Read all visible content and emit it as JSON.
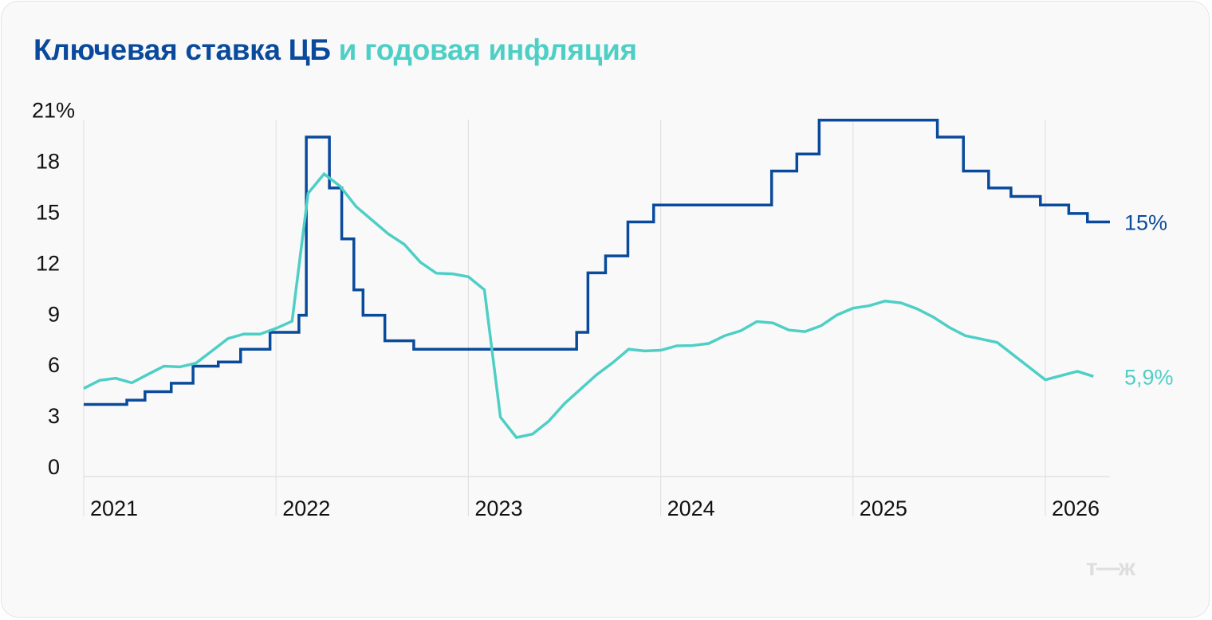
{
  "title": {
    "part1": "Ключевая ставка ЦБ",
    "part2": "и годовая инфляция"
  },
  "logo": "т—ж",
  "colors": {
    "key_rate": "#0a4a9c",
    "inflation": "#4ecfc6",
    "grid": "#e2e2e2",
    "text": "#111111"
  },
  "chart_data": {
    "type": "line",
    "title": "Ключевая ставка ЦБ и годовая инфляция",
    "ylim": [
      0,
      21
    ],
    "yticks": [
      0,
      3,
      6,
      9,
      12,
      15,
      18,
      21
    ],
    "ytick_labels": [
      "0",
      "3",
      "6",
      "9",
      "12",
      "15",
      "18",
      "21%"
    ],
    "xticks": [
      "2021",
      "2022",
      "2023",
      "2024",
      "2025",
      "2026"
    ],
    "grid": "vertical lines at year starts",
    "series": [
      {
        "key": "key_rate",
        "style": "step",
        "end_label": "15%",
        "points": [
          [
            "2021-01-01",
            4.25
          ],
          [
            "2021-03-22",
            4.5
          ],
          [
            "2021-04-26",
            5.0
          ],
          [
            "2021-06-15",
            5.5
          ],
          [
            "2021-07-26",
            6.5
          ],
          [
            "2021-09-13",
            6.75
          ],
          [
            "2021-10-25",
            7.5
          ],
          [
            "2021-12-20",
            8.5
          ],
          [
            "2022-02-14",
            9.5
          ],
          [
            "2022-02-28",
            20
          ],
          [
            "2022-04-11",
            17
          ],
          [
            "2022-05-04",
            14
          ],
          [
            "2022-05-27",
            11
          ],
          [
            "2022-06-14",
            9.5
          ],
          [
            "2022-07-25",
            8
          ],
          [
            "2022-09-19",
            7.5
          ],
          [
            "2023-07-24",
            8.5
          ],
          [
            "2023-08-15",
            12
          ],
          [
            "2023-09-18",
            13
          ],
          [
            "2023-10-30",
            15
          ],
          [
            "2023-12-18",
            16
          ],
          [
            "2024-07-29",
            18
          ],
          [
            "2024-09-16",
            19
          ],
          [
            "2024-10-28",
            21
          ],
          [
            "2025-06-09",
            20
          ],
          [
            "2025-07-28",
            18
          ],
          [
            "2025-09-15",
            17
          ],
          [
            "2025-10-27",
            16.5
          ],
          [
            "2025-12-22",
            16
          ],
          [
            "2026-02-15",
            15.5
          ],
          [
            "2026-03-20",
            15
          ],
          [
            "2026-04-15",
            15
          ]
        ]
      },
      {
        "key": "inflation",
        "style": "line",
        "end_label": "5,9%",
        "points": [
          [
            "2021-01",
            5.19
          ],
          [
            "2021-02",
            5.67
          ],
          [
            "2021-03",
            5.79
          ],
          [
            "2021-04",
            5.52
          ],
          [
            "2021-05",
            6.02
          ],
          [
            "2021-06",
            6.5
          ],
          [
            "2021-07",
            6.46
          ],
          [
            "2021-08",
            6.68
          ],
          [
            "2021-09",
            7.4
          ],
          [
            "2021-10",
            8.13
          ],
          [
            "2021-11",
            8.4
          ],
          [
            "2021-12",
            8.39
          ],
          [
            "2022-01",
            8.73
          ],
          [
            "2022-02",
            9.15
          ],
          [
            "2022-03",
            16.69
          ],
          [
            "2022-04",
            17.83
          ],
          [
            "2022-05",
            17.1
          ],
          [
            "2022-06",
            15.9
          ],
          [
            "2022-07",
            15.1
          ],
          [
            "2022-08",
            14.3
          ],
          [
            "2022-09",
            13.68
          ],
          [
            "2022-10",
            12.63
          ],
          [
            "2022-11",
            11.98
          ],
          [
            "2022-12",
            11.94
          ],
          [
            "2023-01",
            11.77
          ],
          [
            "2023-02",
            11.0
          ],
          [
            "2023-03",
            3.5
          ],
          [
            "2023-04",
            2.3
          ],
          [
            "2023-05",
            2.5
          ],
          [
            "2023-06",
            3.25
          ],
          [
            "2023-07",
            4.3
          ],
          [
            "2023-08",
            5.15
          ],
          [
            "2023-09",
            6.0
          ],
          [
            "2023-10",
            6.7
          ],
          [
            "2023-11",
            7.5
          ],
          [
            "2023-12",
            7.4
          ],
          [
            "2024-01",
            7.44
          ],
          [
            "2024-02",
            7.7
          ],
          [
            "2024-03",
            7.72
          ],
          [
            "2024-04",
            7.84
          ],
          [
            "2024-05",
            8.3
          ],
          [
            "2024-06",
            8.59
          ],
          [
            "2024-07",
            9.13
          ],
          [
            "2024-08",
            9.05
          ],
          [
            "2024-09",
            8.63
          ],
          [
            "2024-10",
            8.54
          ],
          [
            "2024-11",
            8.88
          ],
          [
            "2024-12",
            9.52
          ],
          [
            "2025-01",
            9.92
          ],
          [
            "2025-02",
            10.06
          ],
          [
            "2025-03",
            10.34
          ],
          [
            "2025-04",
            10.23
          ],
          [
            "2025-05",
            9.88
          ],
          [
            "2025-06",
            9.4
          ],
          [
            "2025-07",
            8.79
          ],
          [
            "2025-08",
            8.3
          ],
          [
            "2025-09",
            8.1
          ],
          [
            "2025-10",
            7.9
          ],
          [
            "2026-01",
            5.7
          ],
          [
            "2026-03",
            6.2
          ],
          [
            "2026-04",
            5.9
          ]
        ]
      }
    ]
  }
}
